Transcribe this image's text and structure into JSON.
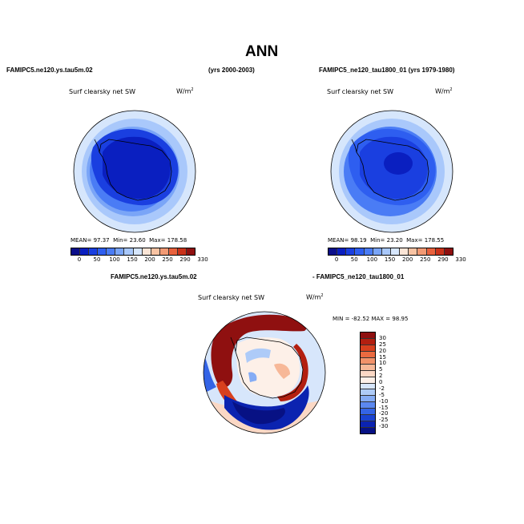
{
  "title": "ANN",
  "colors": {
    "abs_scale": [
      "#0b0f8a",
      "#0a1fc0",
      "#1a3fe0",
      "#2e5ef0",
      "#4a7cf5",
      "#7aa5f7",
      "#a9c8fb",
      "#d6e6fc",
      "#fbe5d6",
      "#f8c3a3",
      "#f29a74",
      "#e8613d",
      "#c9321a",
      "#8f1010"
    ],
    "diff_scale": [
      "#8f1010",
      "#b31f10",
      "#d8401e",
      "#ea6a40",
      "#f2926a",
      "#f7b898",
      "#fbd8c5",
      "#fdf0e8",
      "#d7e6fb",
      "#aecbf8",
      "#85acf5",
      "#5b88f0",
      "#3464e6",
      "#1a43d2",
      "#0b23b0",
      "#071184"
    ]
  },
  "panels": {
    "top_left": {
      "case_name": "FAMIPC5.ne120.ys.tau5m.02",
      "years": "(yrs 2000-2003)",
      "variable": "Surf clearsky net SW",
      "units": "W/m",
      "units_exp": "2",
      "mean_label": "MEAN=",
      "mean": "97.37",
      "min_label": "Min=",
      "min": "23.60",
      "max_label": "Max=",
      "max": "178.58"
    },
    "top_right": {
      "case_name": "FAMIPC5_ne120_tau1800_01 (yrs 1979-1980)",
      "variable": "Surf clearsky net SW",
      "units": "W/m",
      "units_exp": "2",
      "mean_label": "MEAN=",
      "mean": "98.19",
      "min_label": "Min=",
      "min": "23.20",
      "max_label": "Max=",
      "max": "178.55"
    },
    "diff": {
      "case_a": "FAMIPC5.ne120.ys.tau5m.02",
      "case_b": "- FAMIPC5_ne120_tau1800_01",
      "variable": "Surf clearsky net SW",
      "units": "W/m",
      "units_exp": "2",
      "minmax": "MIN = -82.52 MAX =   98.95"
    }
  },
  "abs_colorbar_labels": [
    "0",
    "50",
    "100",
    "150",
    "200",
    "250",
    "290",
    "330"
  ],
  "diff_colorbar_labels": [
    "30",
    "25",
    "20",
    "15",
    "10",
    "5",
    "2",
    "0",
    "-2",
    "-5",
    "-10",
    "-15",
    "-20",
    "-25",
    "-30"
  ]
}
